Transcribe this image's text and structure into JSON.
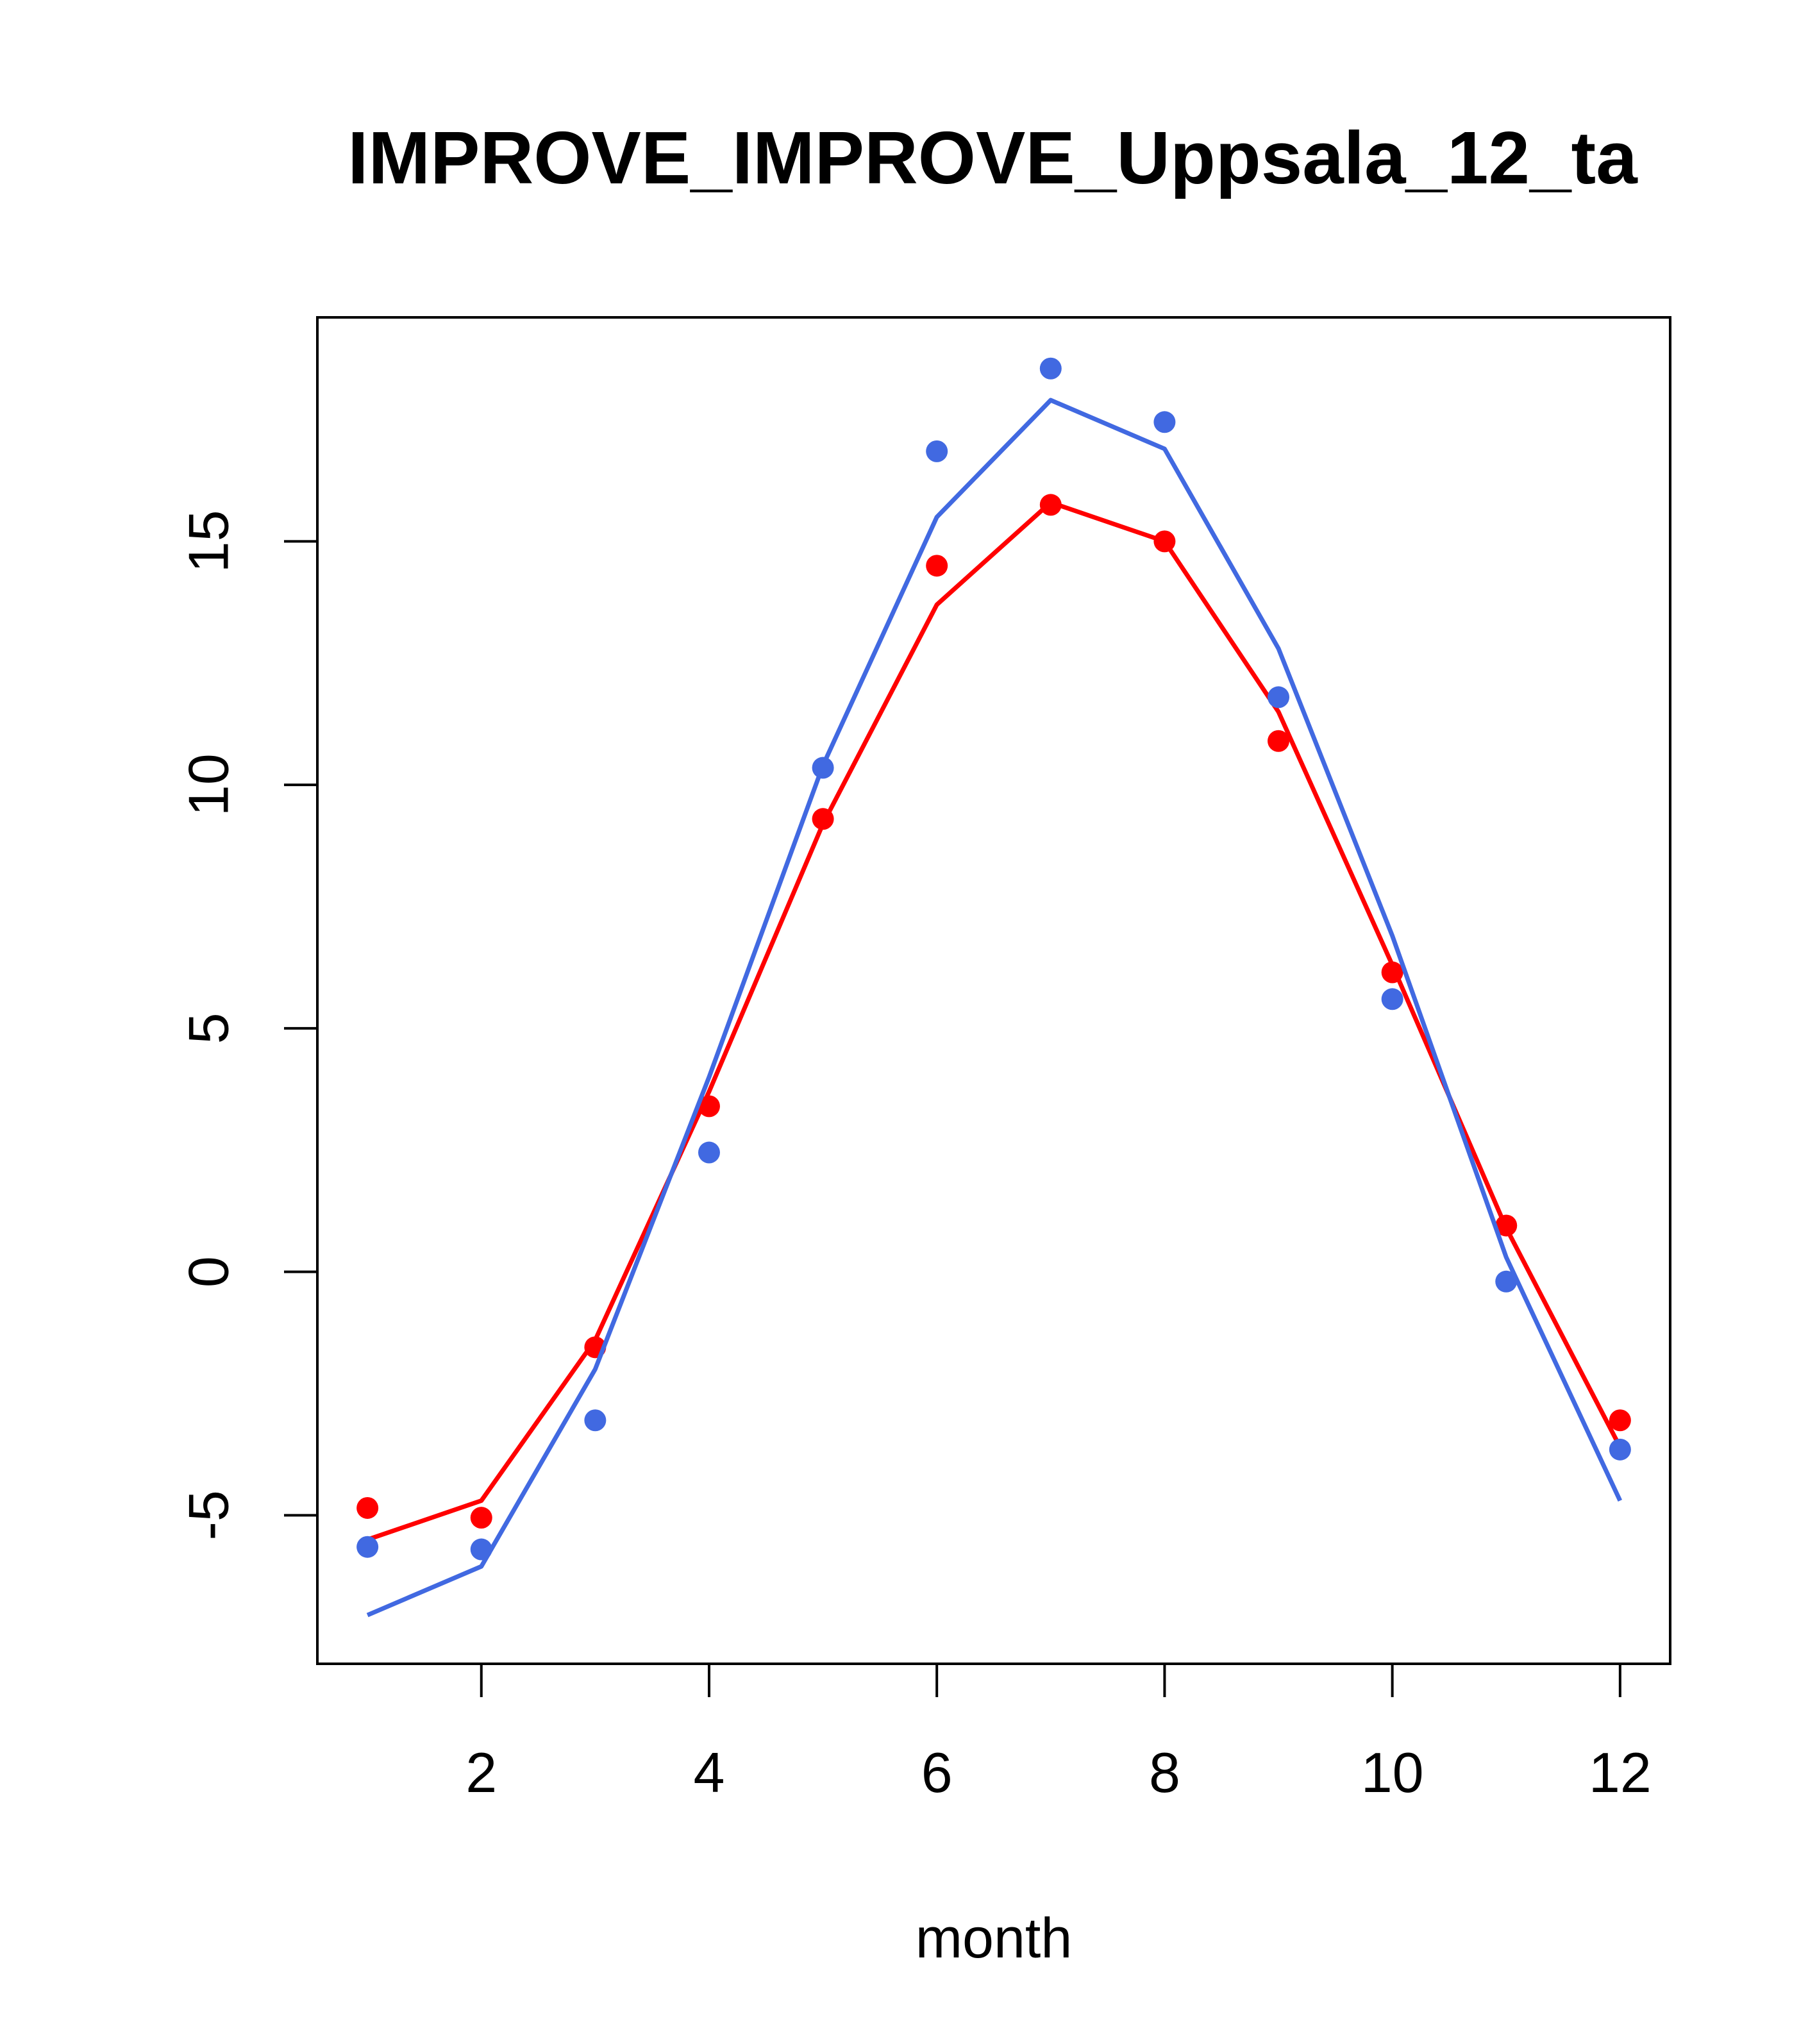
{
  "chart_data": {
    "type": "line",
    "title": "IMPROVE_IMPROVE_Uppsala_12_ta",
    "xlabel": "month",
    "ylabel": "",
    "xlim": [
      0.56,
      12.44
    ],
    "ylim": [
      -8.05,
      19.6
    ],
    "xticks": [
      2,
      4,
      6,
      8,
      10,
      12
    ],
    "yticks": [
      -5,
      0,
      5,
      10,
      15
    ],
    "grid": false,
    "legend": "none",
    "x": [
      1,
      2,
      3,
      4,
      5,
      6,
      7,
      8,
      9,
      10,
      11,
      12
    ],
    "series": [
      {
        "color": "#ff0000",
        "points": [
          -4.85,
          -5.05,
          -1.55,
          3.4,
          9.3,
          14.5,
          15.75,
          15.0,
          10.9,
          6.15,
          0.95,
          -3.05
        ],
        "line": [
          -5.5,
          -4.7,
          -1.4,
          3.7,
          9.2,
          13.7,
          15.8,
          15.0,
          11.5,
          6.3,
          0.9,
          -3.6
        ]
      },
      {
        "color": "#4169e1",
        "points": [
          -5.65,
          -5.7,
          -3.05,
          2.45,
          10.35,
          16.85,
          18.55,
          17.45,
          11.8,
          5.6,
          -0.2,
          -3.65
        ],
        "line": [
          -7.05,
          -6.05,
          -2.0,
          4.0,
          10.4,
          15.5,
          17.9,
          16.9,
          12.8,
          6.9,
          0.3,
          -4.7
        ]
      }
    ]
  }
}
